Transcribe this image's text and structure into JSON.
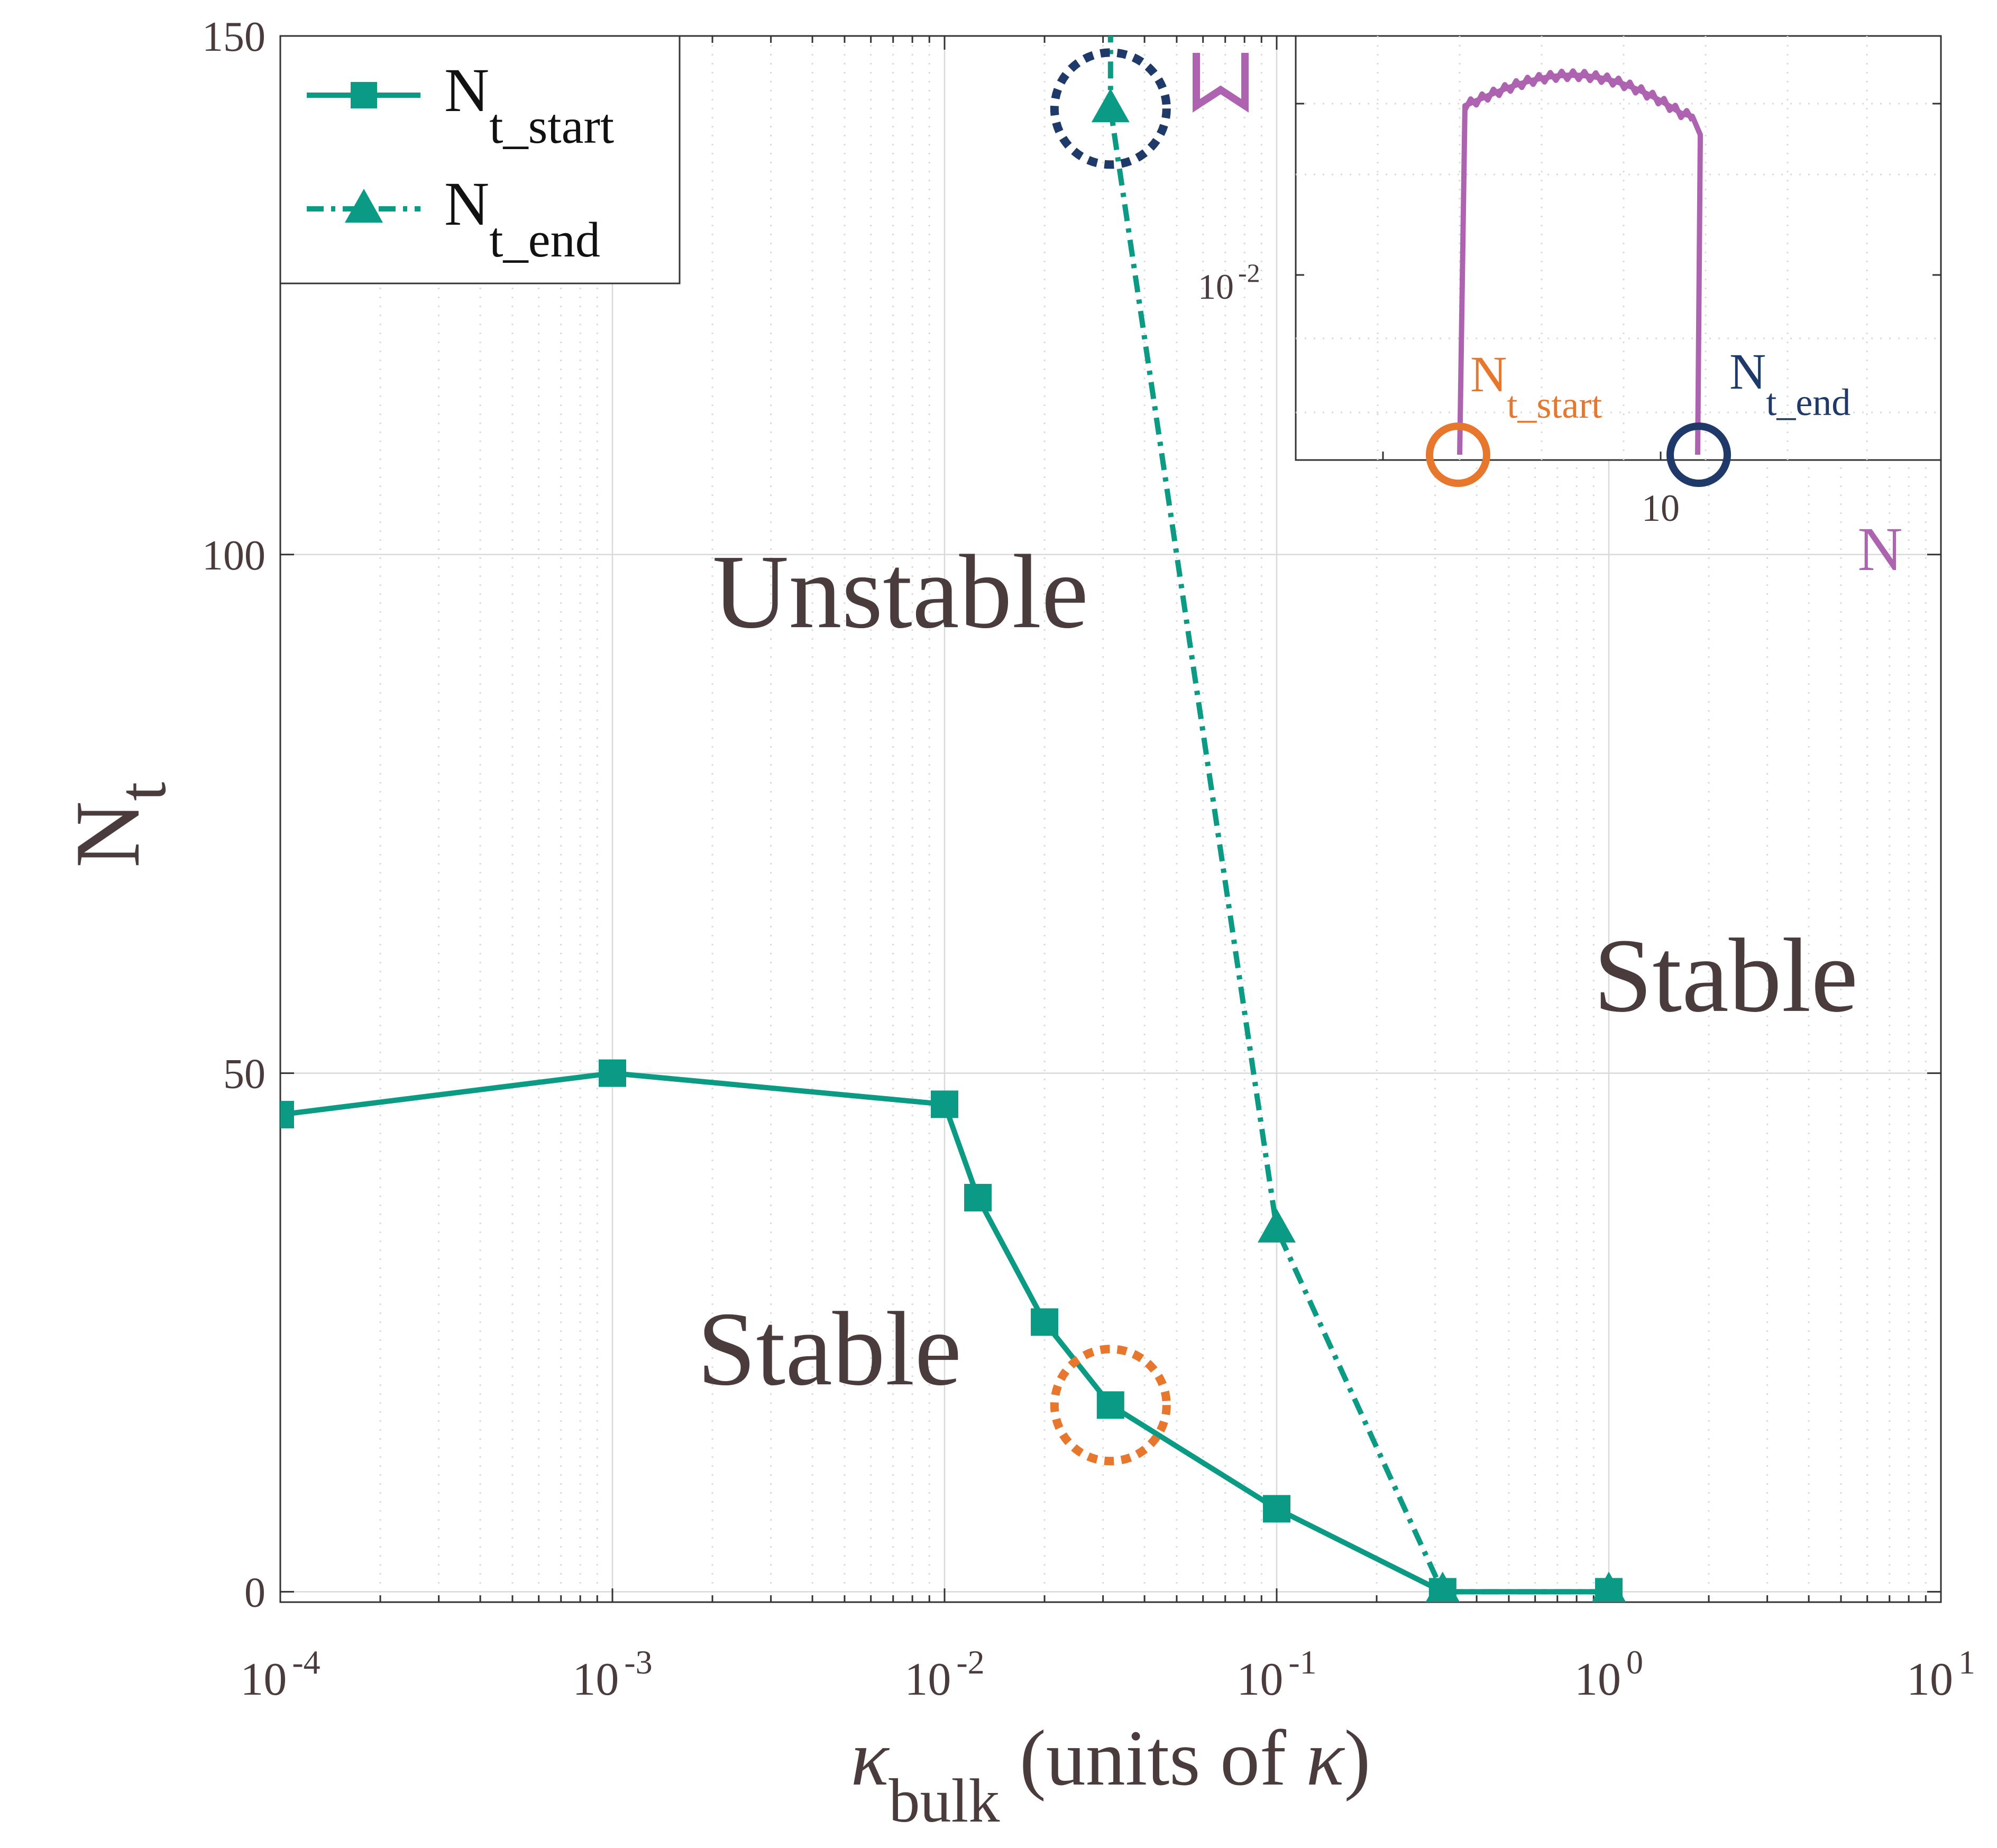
{
  "colors": {
    "series": "#0b9a83",
    "text": "#4a3c3c",
    "orange": "#e8772e",
    "navy": "#1f3a68",
    "purple": "#ad63b0",
    "grid": "#d9d9d9",
    "axis": "#333333"
  },
  "chart_data": [
    {
      "type": "line",
      "title": "",
      "xlabel": {
        "symbol": "κ",
        "subscript": "bulk",
        "rest": " (units of ",
        "symbol2": "κ",
        "close": ")"
      },
      "ylabel": {
        "main": "N",
        "subscript": "t"
      },
      "xscale": "log",
      "xlim": [
        0.0001,
        10
      ],
      "ylim": [
        -1,
        150
      ],
      "x_ticks": [
        {
          "value": 0.0001,
          "base": "10",
          "exp": "-4"
        },
        {
          "value": 0.001,
          "base": "10",
          "exp": "-3"
        },
        {
          "value": 0.01,
          "base": "10",
          "exp": "-2"
        },
        {
          "value": 0.1,
          "base": "10",
          "exp": "-1"
        },
        {
          "value": 1,
          "base": "10",
          "exp": "0"
        },
        {
          "value": 10,
          "base": "10",
          "exp": "1"
        }
      ],
      "y_ticks": [
        {
          "value": 0,
          "label": "0"
        },
        {
          "value": 50,
          "label": "50"
        },
        {
          "value": 100,
          "label": "100"
        },
        {
          "value": 150,
          "label": "150"
        }
      ],
      "grid": true,
      "legend": {
        "position": "top-left",
        "entries": [
          {
            "main": "N",
            "sub": "t_start",
            "marker": "square",
            "dash": "solid"
          },
          {
            "main": "N",
            "sub": "t_end",
            "marker": "triangle",
            "dash": "dashdot"
          }
        ]
      },
      "series": [
        {
          "name": "N_t_start",
          "marker": "square",
          "points": [
            [
              0.0001,
              46
            ],
            [
              0.001,
              50
            ],
            [
              0.01,
              47
            ],
            [
              0.0126,
              38
            ],
            [
              0.02,
              26
            ],
            [
              0.0316,
              18
            ],
            [
              0.1,
              8
            ],
            [
              0.316,
              0
            ],
            [
              1,
              0
            ]
          ]
        },
        {
          "name": "N_t_end",
          "marker": "triangle",
          "points": [
            [
              0.0316,
              151
            ],
            [
              0.0316,
              143
            ],
            [
              0.1,
              35
            ],
            [
              0.316,
              0
            ],
            [
              1,
              0
            ]
          ]
        }
      ],
      "annotations": [
        {
          "text": "Unstable",
          "x": 0.002,
          "y": 93
        },
        {
          "text": "Stable",
          "x": 0.0018,
          "y": 20
        },
        {
          "text": "Stable",
          "x": 0.9,
          "y": 56
        }
      ],
      "highlights": [
        {
          "x": 0.0316,
          "y": 143,
          "color": "navy"
        },
        {
          "x": 0.0316,
          "y": 18,
          "color": "orange"
        }
      ],
      "partial_labels": [
        {
          "text": "N",
          "color": "purple"
        }
      ]
    },
    {
      "type": "line",
      "title": "inset",
      "position": "top-right",
      "xscale": "log",
      "yscale": "log",
      "x_tick_labels": [
        "10"
      ],
      "y_tick_labels": [
        {
          "base": "10",
          "exp": "-2"
        }
      ],
      "labels": [
        {
          "main": "N",
          "sub": "t_start",
          "color": "orange"
        },
        {
          "main": "N",
          "sub": "t_end",
          "color": "navy"
        }
      ]
    }
  ]
}
